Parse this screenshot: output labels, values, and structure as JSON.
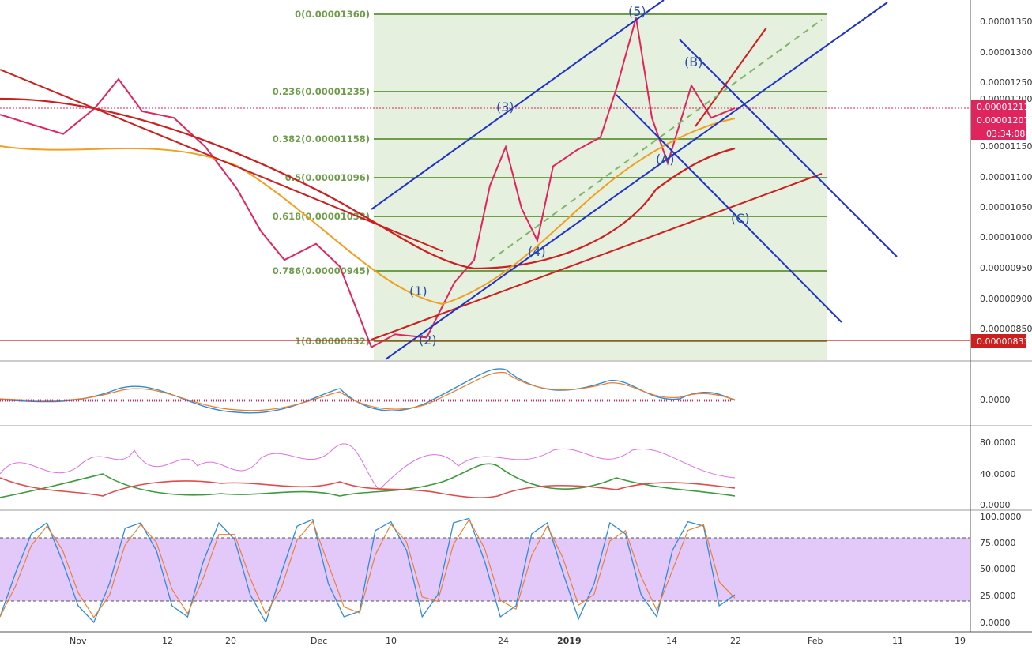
{
  "colors": {
    "fib_green": "#6f9e4b",
    "fib_fill": "#e6f0df",
    "channel_blue": "#1f32c8",
    "trend_red": "#c01818",
    "price_up": "#2a8a2a",
    "price_down": "#e0245e",
    "ma_orange": "#f0a020",
    "ma_red": "#cc1f1f",
    "wave_label": "#2a4fa8",
    "rsi_band": "#e3c8fa",
    "stoch_k": "#2f8bd8",
    "stoch_d": "#f07b27",
    "dmi_plus": "#3d9a3d",
    "dmi_minus": "#e34a4a",
    "adx": "#e16ce6"
  },
  "price_axis": {
    "ticks": [
      "0.00001350",
      "0.00001300",
      "0.00001250",
      "0.00001200",
      "0.00001150",
      "0.00001100",
      "0.00001050",
      "0.00001000",
      "0.00000950",
      "0.00000900",
      "0.00000850"
    ],
    "tags": [
      {
        "label": "0.00001211",
        "color": "#e0245e"
      },
      {
        "label": "0.00001207",
        "color": "#e0245e"
      },
      {
        "label": "03:34:08",
        "color": "#e0245e"
      },
      {
        "label": "0.00000833",
        "color": "#cc1f1f"
      }
    ]
  },
  "time_axis": {
    "ticks": [
      "Nov",
      "12",
      "20",
      "Dec",
      "10",
      "24",
      "2019",
      "14",
      "22",
      "Feb",
      "11",
      "19"
    ]
  },
  "fib_levels": [
    {
      "label": "0(0.00001360)"
    },
    {
      "label": "0.236(0.00001235)"
    },
    {
      "label": "0.382(0.00001158)"
    },
    {
      "label": "0.5(0.00001096)"
    },
    {
      "label": "0.618(0.00001033)"
    },
    {
      "label": "0.786(0.00000945)"
    },
    {
      "label": "1(0.00000832)"
    }
  ],
  "wave_labels": [
    "(1)",
    "(2)",
    "(3)",
    "(4)",
    "(5)",
    "(A)",
    "(B)",
    "(C)"
  ],
  "macd_axis": {
    "ticks": [
      "0.0000"
    ]
  },
  "dmi_axis": {
    "ticks": [
      "80.0000",
      "40.0000",
      "0.0000"
    ]
  },
  "stoch_axis": {
    "ticks": [
      "100.0000",
      "75.0000",
      "50.0000",
      "25.0000",
      "0.0000"
    ]
  },
  "chart_data": [
    {
      "type": "line",
      "panel": "price",
      "ylim": [
        8.2e-06,
        1.37e-05
      ],
      "series": [
        {
          "name": "",
          "points": [
            [
              0,
              1.2e-05
            ],
            [
              40,
              1.185e-05
            ],
            [
              80,
              1.17e-05
            ],
            [
              120,
              1.21e-05
            ],
            [
              150,
              1.255e-05
            ],
            [
              180,
              1.205e-05
            ],
            [
              220,
              1.195e-05
            ],
            [
              260,
              1.15e-05
            ],
            [
              300,
              1.085e-05
            ],
            [
              330,
              1.02e-05
            ],
            [
              360,
              9.75e-06
            ],
            [
              400,
              1e-05
            ],
            [
              430,
              9.65e-06
            ],
            [
              470,
              8.4e-06
            ],
            [
              500,
              8.6e-06
            ],
            [
              540,
              8.55e-06
            ],
            [
              575,
              9.4e-06
            ],
            [
              600,
              9.75e-06
            ],
            [
              620,
              1.09e-05
            ],
            [
              640,
              1.15e-05
            ],
            [
              660,
              1.055e-05
            ],
            [
              680,
              1.005e-05
            ],
            [
              700,
              1.12e-05
            ],
            [
              730,
              1.145e-05
            ],
            [
              760,
              1.165e-05
            ],
            [
              780,
              1.24e-05
            ],
            [
              805,
              1.35e-05
            ],
            [
              825,
              1.195e-05
            ],
            [
              845,
              1.125e-05
            ],
            [
              875,
              1.245e-05
            ],
            [
              900,
              1.195e-05
            ],
            [
              930,
              1.21e-05
            ]
          ]
        }
      ]
    },
    {
      "type": "line",
      "panel": "stochastic",
      "ylim": [
        0,
        100
      ],
      "series": [
        {
          "name": "",
          "values": [
            10,
            50,
            85,
            95,
            60,
            20,
            5,
            40,
            90,
            95,
            70,
            20,
            10,
            60,
            95,
            80,
            30,
            5,
            50,
            92,
            98,
            40,
            10,
            15,
            88,
            96,
            70,
            10,
            30,
            95,
            99,
            60,
            10,
            20,
            85,
            95,
            50,
            8,
            40,
            95,
            85,
            30,
            10,
            70,
            96,
            92,
            20,
            30
          ]
        }
      ]
    }
  ]
}
